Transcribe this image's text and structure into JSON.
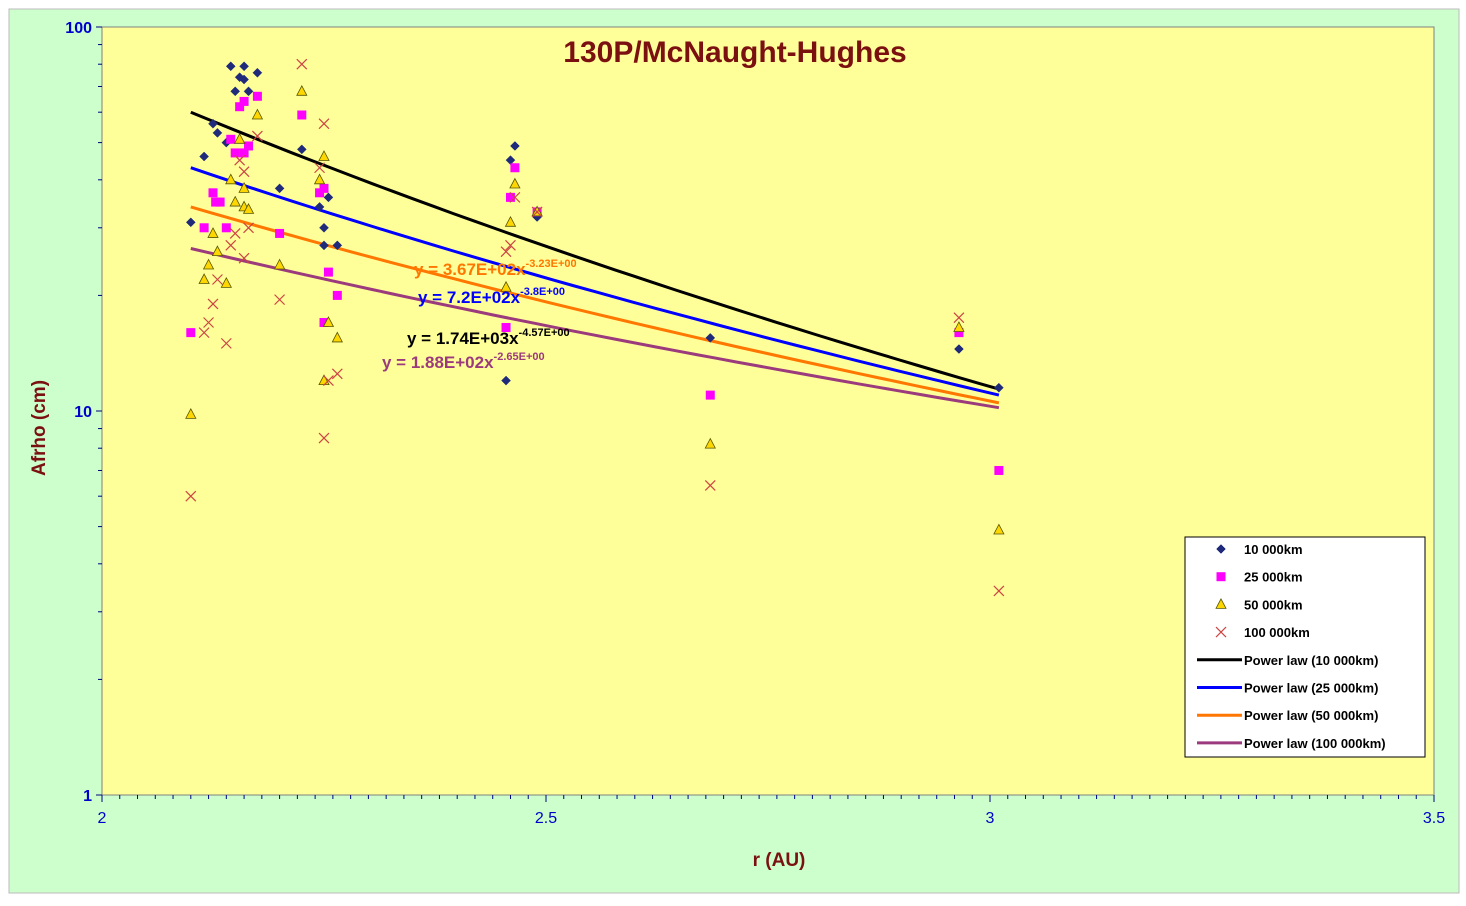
{
  "chart_data": {
    "type": "scatter",
    "title": "130P/McNaught-Hughes",
    "xlabel": "r (AU)",
    "ylabel": "Afrho (cm)",
    "xlim": [
      2,
      3.5
    ],
    "ylim": [
      1,
      100
    ],
    "yscale": "log",
    "x_ticks": [
      "2",
      "2.5",
      "3",
      "3.5"
    ],
    "y_ticks": [
      "1",
      "10",
      "100"
    ],
    "grid": false,
    "legend_position": "bottom-right",
    "colors": {
      "outer_background": "#CCFFCC",
      "plot_background": "#FFFF99",
      "text": "#7B1010",
      "ticks": "#0000CC"
    },
    "series": [
      {
        "name": "10 000km",
        "marker": "diamond",
        "color": "#1F2A7A",
        "points": [
          [
            2.1,
            31
          ],
          [
            2.115,
            46
          ],
          [
            2.125,
            56
          ],
          [
            2.13,
            53
          ],
          [
            2.14,
            50
          ],
          [
            2.145,
            79
          ],
          [
            2.15,
            68
          ],
          [
            2.155,
            74
          ],
          [
            2.16,
            79
          ],
          [
            2.16,
            73
          ],
          [
            2.165,
            68
          ],
          [
            2.175,
            76
          ],
          [
            2.2,
            38
          ],
          [
            2.225,
            48
          ],
          [
            2.245,
            34
          ],
          [
            2.25,
            30
          ],
          [
            2.25,
            27
          ],
          [
            2.255,
            36
          ],
          [
            2.265,
            27
          ],
          [
            2.455,
            12
          ],
          [
            2.46,
            45
          ],
          [
            2.465,
            49
          ],
          [
            2.49,
            32
          ],
          [
            2.685,
            15.5
          ],
          [
            2.965,
            14.5
          ],
          [
            3.01,
            11.5
          ]
        ]
      },
      {
        "name": "25 000km",
        "marker": "square",
        "color": "#FF00FF",
        "points": [
          [
            2.1,
            16
          ],
          [
            2.115,
            30
          ],
          [
            2.125,
            37
          ],
          [
            2.128,
            35
          ],
          [
            2.133,
            35
          ],
          [
            2.14,
            30
          ],
          [
            2.145,
            51
          ],
          [
            2.15,
            47
          ],
          [
            2.155,
            62
          ],
          [
            2.16,
            47
          ],
          [
            2.16,
            64
          ],
          [
            2.165,
            49
          ],
          [
            2.175,
            66
          ],
          [
            2.2,
            29
          ],
          [
            2.225,
            59
          ],
          [
            2.245,
            37
          ],
          [
            2.25,
            38
          ],
          [
            2.25,
            17
          ],
          [
            2.255,
            23
          ],
          [
            2.265,
            20
          ],
          [
            2.455,
            16.5
          ],
          [
            2.46,
            36
          ],
          [
            2.465,
            43
          ],
          [
            2.49,
            33
          ],
          [
            2.685,
            11
          ],
          [
            2.965,
            16
          ],
          [
            3.01,
            7
          ]
        ]
      },
      {
        "name": "50 000km",
        "marker": "triangle",
        "color": "#FFD700",
        "points": [
          [
            2.1,
            9.8
          ],
          [
            2.115,
            22
          ],
          [
            2.12,
            24
          ],
          [
            2.125,
            29
          ],
          [
            2.13,
            26
          ],
          [
            2.14,
            21.5
          ],
          [
            2.145,
            40
          ],
          [
            2.15,
            35
          ],
          [
            2.155,
            51
          ],
          [
            2.16,
            34
          ],
          [
            2.16,
            38
          ],
          [
            2.165,
            33.5
          ],
          [
            2.175,
            59
          ],
          [
            2.2,
            24
          ],
          [
            2.225,
            68
          ],
          [
            2.245,
            40
          ],
          [
            2.25,
            46
          ],
          [
            2.25,
            12
          ],
          [
            2.255,
            17
          ],
          [
            2.265,
            15.5
          ],
          [
            2.455,
            21
          ],
          [
            2.46,
            31
          ],
          [
            2.465,
            39
          ],
          [
            2.49,
            33
          ],
          [
            2.685,
            8.2
          ],
          [
            2.965,
            16.5
          ],
          [
            3.01,
            4.9
          ]
        ]
      },
      {
        "name": "100 000km",
        "marker": "x",
        "color": "#CC4444",
        "points": [
          [
            2.1,
            6
          ],
          [
            2.115,
            16
          ],
          [
            2.12,
            17
          ],
          [
            2.125,
            19
          ],
          [
            2.13,
            22
          ],
          [
            2.14,
            15
          ],
          [
            2.145,
            27
          ],
          [
            2.15,
            29
          ],
          [
            2.155,
            45
          ],
          [
            2.16,
            42
          ],
          [
            2.16,
            25
          ],
          [
            2.165,
            30
          ],
          [
            2.175,
            52
          ],
          [
            2.2,
            19.5
          ],
          [
            2.225,
            80
          ],
          [
            2.245,
            43
          ],
          [
            2.25,
            56
          ],
          [
            2.25,
            8.5
          ],
          [
            2.255,
            12
          ],
          [
            2.265,
            12.5
          ],
          [
            2.455,
            26
          ],
          [
            2.46,
            27
          ],
          [
            2.465,
            36
          ],
          [
            2.49,
            33
          ],
          [
            2.685,
            6.4
          ],
          [
            2.965,
            17.5
          ],
          [
            3.01,
            3.4
          ]
        ]
      }
    ],
    "fits": [
      {
        "name": "Power law (10 000km)",
        "color": "#000000",
        "x_range": [
          2.1,
          3.01
        ],
        "start_y": 60,
        "end_y": 11.4,
        "equation": "y = 1.74E+03x",
        "exponent": "-4.57E+00"
      },
      {
        "name": "Power law (25 000km)",
        "color": "#0000FF",
        "x_range": [
          2.1,
          3.01
        ],
        "start_y": 43,
        "end_y": 11,
        "equation": "y = 7.2E+02x",
        "exponent": "-3.8E+00"
      },
      {
        "name": "Power law (50 000km)",
        "color": "#FF7700",
        "x_range": [
          2.1,
          3.01
        ],
        "start_y": 34,
        "end_y": 10.5,
        "equation": "y = 3.67E+02x",
        "exponent": "-3.23E+00"
      },
      {
        "name": "Power law (100 000km)",
        "color": "#9B3A7C",
        "x_range": [
          2.1,
          3.01
        ],
        "start_y": 26.5,
        "end_y": 10.2,
        "equation": "y = 1.88E+02x",
        "exponent": "-2.65E+00"
      }
    ]
  }
}
